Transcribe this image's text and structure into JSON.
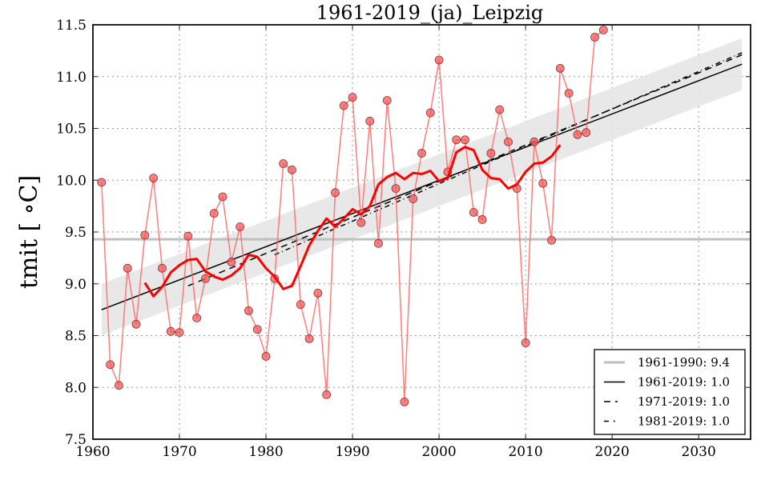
{
  "chart_data": {
    "type": "line",
    "title": "1961-2019_(ja)_Leipzig",
    "xlabel": "",
    "ylabel": "tmit [ ∘C]",
    "xlim": [
      1960,
      2036
    ],
    "ylim": [
      7.5,
      11.5
    ],
    "grid": true,
    "xticks": [
      1960,
      1970,
      1980,
      1990,
      2000,
      2010,
      2020,
      2030
    ],
    "xtick_labels": [
      "1960",
      "1970",
      "1980",
      "1990",
      "2000",
      "2010",
      "2020",
      "2030"
    ],
    "yticks": [
      7.5,
      8.0,
      8.5,
      9.0,
      9.5,
      10.0,
      10.5,
      11.0,
      11.5
    ],
    "ytick_labels": [
      "7.5",
      "8.0",
      "8.5",
      "9.0",
      "9.5",
      "10.0",
      "10.5",
      "11.0",
      "11.5"
    ],
    "legend_position": "bottom-right",
    "colors": {
      "annual": "#ff6666",
      "marker": "#ff5555",
      "moving_avg": "#ff0000",
      "reference": "#bfbfbf",
      "band": "#e5e5e5",
      "trend": "#000000"
    },
    "annual": {
      "name": "annual mean",
      "x": [
        1961,
        1962,
        1963,
        1964,
        1965,
        1966,
        1967,
        1968,
        1969,
        1970,
        1971,
        1972,
        1973,
        1974,
        1975,
        1976,
        1977,
        1978,
        1979,
        1980,
        1981,
        1982,
        1983,
        1984,
        1985,
        1986,
        1987,
        1988,
        1989,
        1990,
        1991,
        1992,
        1993,
        1994,
        1995,
        1996,
        1997,
        1998,
        1999,
        2000,
        2001,
        2002,
        2003,
        2004,
        2005,
        2006,
        2007,
        2008,
        2009,
        2010,
        2011,
        2012,
        2013,
        2014,
        2015,
        2016,
        2017,
        2018,
        2019
      ],
      "values": [
        9.98,
        8.22,
        8.02,
        9.15,
        8.61,
        9.47,
        10.02,
        9.15,
        8.54,
        8.53,
        9.46,
        8.67,
        9.05,
        9.68,
        9.84,
        9.21,
        9.55,
        8.74,
        8.56,
        8.3,
        9.05,
        10.16,
        10.1,
        8.8,
        8.47,
        8.91,
        7.93,
        9.88,
        10.72,
        10.8,
        9.59,
        10.57,
        9.39,
        10.77,
        9.92,
        7.86,
        9.82,
        10.26,
        10.65,
        11.16,
        10.08,
        10.39,
        10.39,
        9.69,
        9.62,
        10.26,
        10.68,
        10.37,
        9.92,
        8.43,
        10.37,
        9.97,
        9.42,
        11.08,
        10.84,
        10.44,
        10.46,
        11.38,
        11.45
      ]
    },
    "moving_average": {
      "name": "moving average",
      "x": [
        1966,
        1967,
        1968,
        1969,
        1970,
        1971,
        1972,
        1973,
        1974,
        1975,
        1976,
        1977,
        1978,
        1979,
        1980,
        1981,
        1982,
        1983,
        1984,
        1985,
        1986,
        1987,
        1988,
        1989,
        1990,
        1991,
        1992,
        1993,
        1994,
        1995,
        1996,
        1997,
        1998,
        1999,
        2000,
        2001,
        2002,
        2003,
        2004,
        2005,
        2006,
        2007,
        2008,
        2009,
        2010,
        2011,
        2012,
        2013,
        2014
      ],
      "values": [
        9.01,
        8.88,
        8.97,
        9.11,
        9.18,
        9.23,
        9.24,
        9.12,
        9.07,
        9.04,
        9.08,
        9.15,
        9.28,
        9.26,
        9.15,
        9.07,
        8.95,
        8.98,
        9.17,
        9.37,
        9.51,
        9.63,
        9.55,
        9.63,
        9.72,
        9.67,
        9.75,
        9.96,
        10.03,
        10.07,
        10.01,
        10.07,
        10.06,
        10.09,
        9.99,
        10.02,
        10.27,
        10.32,
        10.29,
        10.1,
        10.02,
        10.01,
        9.92,
        9.96,
        10.08,
        10.16,
        10.17,
        10.23,
        10.34
      ]
    },
    "reference_line": {
      "label": "1961-1990: 9.4",
      "value": 9.43,
      "x": [
        1960,
        2036
      ]
    },
    "trends": [
      {
        "label": "1961-2019: 1.0",
        "style": "solid",
        "x": [
          1961,
          2035
        ],
        "y": [
          8.75,
          11.12
        ]
      },
      {
        "label": "1971-2019: 1.0",
        "style": "dashed",
        "x": [
          1971,
          2035
        ],
        "y": [
          8.98,
          11.21
        ]
      },
      {
        "label": "1981-2019: 1.0",
        "style": "dashdot",
        "x": [
          1981,
          2035
        ],
        "y": [
          9.28,
          11.23
        ]
      }
    ],
    "confidence_band": {
      "x": [
        1961,
        2035
      ],
      "upper": [
        9.0,
        11.37
      ],
      "lower": [
        8.5,
        10.87
      ]
    },
    "legend": [
      {
        "label": "1961-1990: 9.4",
        "style": "reference"
      },
      {
        "label": "1961-2019: 1.0",
        "style": "solid"
      },
      {
        "label": "1971-2019: 1.0",
        "style": "dashed"
      },
      {
        "label": "1981-2019: 1.0",
        "style": "dashdot"
      }
    ]
  }
}
